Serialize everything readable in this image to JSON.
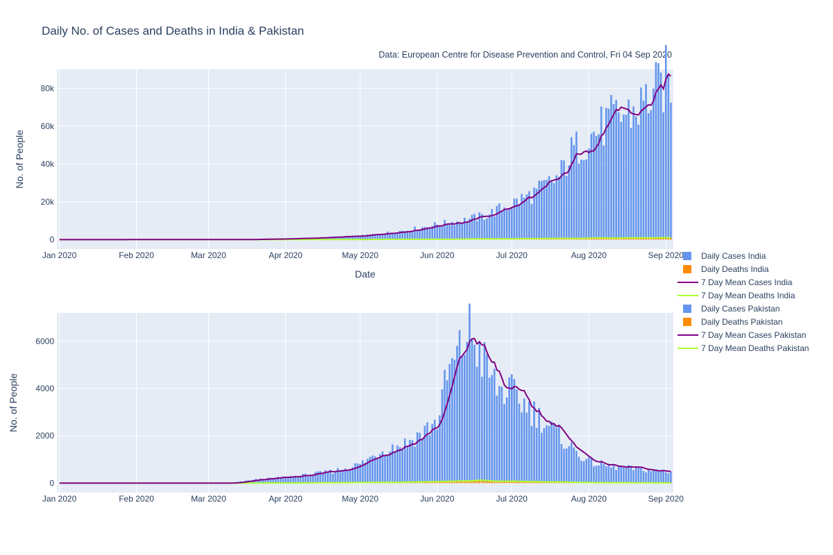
{
  "title": "Daily No. of Cases and Deaths in India & Pakistan",
  "subtitle": "Data: European Centre for Disease Prevention and Control, Fri 04 Sep 2020",
  "colors": {
    "cases_bar": "#6495ed",
    "deaths_bar": "#ff8c00",
    "mean_cases": "#800080",
    "mean_deaths": "#adff2f",
    "plot_bg": "#e5ecf6",
    "grid": "#ffffff"
  },
  "chart_data": [
    {
      "type": "bar",
      "country": "India",
      "xlabel": "Date",
      "ylabel": "No. of People",
      "x_ticks": [
        "Jan 2020",
        "Feb 2020",
        "Mar 2020",
        "Apr 2020",
        "May 2020",
        "Jun 2020",
        "Jul 2020",
        "Aug 2020",
        "Sep 2020"
      ],
      "y_ticks": [
        "0",
        "20k",
        "40k",
        "60k",
        "80k"
      ],
      "ylim": [
        -5000,
        90000
      ],
      "xlim": [
        "2019-12-31",
        "2020-09-04"
      ],
      "grid": true,
      "keypoints_cases": [
        [
          "2020-01-01",
          0
        ],
        [
          "2020-03-15",
          20
        ],
        [
          "2020-04-01",
          400
        ],
        [
          "2020-04-15",
          1000
        ],
        [
          "2020-05-01",
          1900
        ],
        [
          "2020-05-10",
          3300
        ],
        [
          "2020-05-20",
          5000
        ],
        [
          "2020-06-01",
          8000
        ],
        [
          "2020-06-10",
          9800
        ],
        [
          "2020-06-20",
          12500
        ],
        [
          "2020-07-01",
          19000
        ],
        [
          "2020-07-10",
          24500
        ],
        [
          "2020-07-20",
          33000
        ],
        [
          "2020-07-25",
          46000
        ],
        [
          "2020-08-01",
          54000
        ],
        [
          "2020-08-10",
          63000
        ],
        [
          "2020-08-15",
          66000
        ],
        [
          "2020-08-20",
          68000
        ],
        [
          "2020-08-25",
          75000
        ],
        [
          "2020-08-30",
          80000
        ],
        [
          "2020-09-01",
          85000
        ],
        [
          "2020-09-03",
          84000
        ]
      ],
      "keypoints_deaths": [
        [
          "2020-03-25",
          0
        ],
        [
          "2020-05-01",
          70
        ],
        [
          "2020-06-01",
          250
        ],
        [
          "2020-07-01",
          450
        ],
        [
          "2020-08-01",
          800
        ],
        [
          "2020-09-03",
          1050
        ]
      ],
      "series": [
        {
          "name": "Daily Cases India",
          "kind": "bar"
        },
        {
          "name": "Daily Deaths India",
          "kind": "bar"
        },
        {
          "name": "7 Day Mean Cases India",
          "kind": "line"
        },
        {
          "name": "7 Day Mean Deaths India",
          "kind": "line"
        }
      ]
    },
    {
      "type": "bar",
      "country": "Pakistan",
      "xlabel": "",
      "ylabel": "No. of People",
      "x_ticks": [
        "Jan 2020",
        "Feb 2020",
        "Mar 2020",
        "Apr 2020",
        "May 2020",
        "Jun 2020",
        "Jul 2020",
        "Aug 2020",
        "Sep 2020"
      ],
      "y_ticks": [
        "0",
        "2000",
        "4000",
        "6000"
      ],
      "ylim": [
        -400,
        7200
      ],
      "xlim": [
        "2019-12-31",
        "2020-09-04"
      ],
      "grid": true,
      "keypoints_cases": [
        [
          "2020-01-01",
          0
        ],
        [
          "2020-03-10",
          0
        ],
        [
          "2020-03-20",
          150
        ],
        [
          "2020-04-01",
          250
        ],
        [
          "2020-04-10",
          350
        ],
        [
          "2020-04-20",
          500
        ],
        [
          "2020-05-01",
          800
        ],
        [
          "2020-05-10",
          1400
        ],
        [
          "2020-05-20",
          1700
        ],
        [
          "2020-06-01",
          2600
        ],
        [
          "2020-06-05",
          4500
        ],
        [
          "2020-06-10",
          5500
        ],
        [
          "2020-06-14",
          6500
        ],
        [
          "2020-06-18",
          5500
        ],
        [
          "2020-06-25",
          4000
        ],
        [
          "2020-07-01",
          3800
        ],
        [
          "2020-07-10",
          3000
        ],
        [
          "2020-07-20",
          2000
        ],
        [
          "2020-07-25",
          1500
        ],
        [
          "2020-08-01",
          900
        ],
        [
          "2020-08-10",
          700
        ],
        [
          "2020-08-20",
          600
        ],
        [
          "2020-09-03",
          450
        ]
      ],
      "keypoints_deaths": [
        [
          "2020-03-20",
          0
        ],
        [
          "2020-04-15",
          15
        ],
        [
          "2020-05-15",
          40
        ],
        [
          "2020-06-01",
          70
        ],
        [
          "2020-06-15",
          110
        ],
        [
          "2020-07-01",
          75
        ],
        [
          "2020-08-01",
          20
        ],
        [
          "2020-09-03",
          8
        ]
      ],
      "series": [
        {
          "name": "Daily Cases Pakistan",
          "kind": "bar"
        },
        {
          "name": "Daily Deaths Pakistan",
          "kind": "bar"
        },
        {
          "name": "7 Day Mean Cases Pakistan",
          "kind": "line"
        },
        {
          "name": "7 Day Mean Deaths Pakistan",
          "kind": "line"
        }
      ]
    }
  ],
  "legend": [
    {
      "label": "Daily Cases India",
      "kind": "bar",
      "color": "#6495ed"
    },
    {
      "label": "Daily Deaths India",
      "kind": "bar",
      "color": "#ff8c00"
    },
    {
      "label": "7 Day Mean Cases India",
      "kind": "line",
      "color": "#800080"
    },
    {
      "label": "7 Day Mean Deaths India",
      "kind": "line",
      "color": "#adff2f"
    },
    {
      "label": "Daily Cases Pakistan",
      "kind": "bar",
      "color": "#6495ed"
    },
    {
      "label": "Daily Deaths Pakistan",
      "kind": "bar",
      "color": "#ff8c00"
    },
    {
      "label": "7 Day Mean Cases Pakistan",
      "kind": "line",
      "color": "#800080"
    },
    {
      "label": "7 Day Mean Deaths Pakistan",
      "kind": "line",
      "color": "#adff2f"
    }
  ]
}
